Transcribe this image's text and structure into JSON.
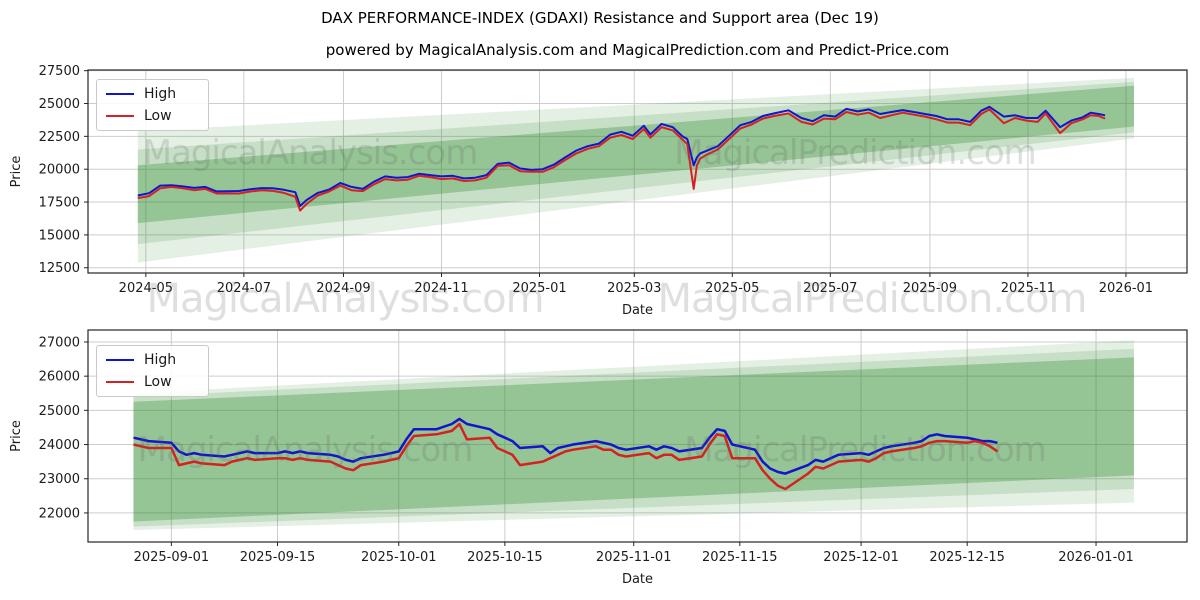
{
  "figure": {
    "title": "DAX PERFORMANCE-INDEX (GDAXI) Resistance and Support area (Dec 19)",
    "subtitle": "powered by MagicalAnalysis.com and MagicalPrediction.com and Predict-Price.com"
  },
  "watermarks": {
    "analysis": "MagicalAnalysis.com",
    "prediction": "MagicalPrediction.com"
  },
  "colors": {
    "high_line": "#1414cc",
    "low_line": "#d62121",
    "band_green": "#2e8b2e",
    "grid": "#cdcdcd",
    "spine": "#262626"
  },
  "chart_data": [
    {
      "id": "overview",
      "type": "line",
      "xlabel": "Date",
      "ylabel": "Price",
      "x_domain": [
        "2024-03-26",
        "2026-02-08"
      ],
      "y_domain": [
        12100,
        27550
      ],
      "x_ticks": [
        {
          "d": "2024-05-01",
          "label": "2024-05"
        },
        {
          "d": "2024-07-01",
          "label": "2024-07"
        },
        {
          "d": "2024-09-01",
          "label": "2024-09"
        },
        {
          "d": "2024-11-01",
          "label": "2024-11"
        },
        {
          "d": "2025-01-01",
          "label": "2025-01"
        },
        {
          "d": "2025-03-01",
          "label": "2025-03"
        },
        {
          "d": "2025-05-01",
          "label": "2025-05"
        },
        {
          "d": "2025-07-01",
          "label": "2025-07"
        },
        {
          "d": "2025-09-01",
          "label": "2025-09"
        },
        {
          "d": "2025-11-01",
          "label": "2025-11"
        },
        {
          "d": "2026-01-01",
          "label": "2026-01"
        }
      ],
      "y_ticks": [
        12500,
        15000,
        17500,
        20000,
        22500,
        25000,
        27500
      ],
      "band_color": "#2e8b2e",
      "bands": [
        {
          "x": [
            "2024-04-26",
            "2026-01-06"
          ],
          "top": [
            22900,
            26950
          ],
          "bottom": [
            12900,
            22350
          ],
          "opacity": 0.13
        },
        {
          "x": [
            "2024-04-26",
            "2026-01-06"
          ],
          "top": [
            21500,
            26650
          ],
          "bottom": [
            14300,
            22800
          ],
          "opacity": 0.16
        },
        {
          "x": [
            "2024-04-26",
            "2026-01-06"
          ],
          "top": [
            20300,
            26350
          ],
          "bottom": [
            15900,
            23250
          ],
          "opacity": 0.32
        }
      ],
      "series": [
        {
          "label": "High",
          "col": 1,
          "color": "#1414cc"
        },
        {
          "label": "Low",
          "col": 2,
          "color": "#d62121"
        }
      ],
      "columns": [
        "date",
        "high",
        "low"
      ],
      "rows": [
        [
          "2024-04-26",
          18000,
          17800
        ],
        [
          "2024-05-03",
          18175,
          17950
        ],
        [
          "2024-05-10",
          18750,
          18550
        ],
        [
          "2024-05-17",
          18780,
          18650
        ],
        [
          "2024-05-24",
          18690,
          18550
        ],
        [
          "2024-05-31",
          18580,
          18400
        ],
        [
          "2024-06-07",
          18650,
          18500
        ],
        [
          "2024-06-14",
          18310,
          18150
        ],
        [
          "2024-06-21",
          18320,
          18150
        ],
        [
          "2024-06-28",
          18340,
          18150
        ],
        [
          "2024-07-05",
          18480,
          18300
        ],
        [
          "2024-07-12",
          18560,
          18400
        ],
        [
          "2024-07-19",
          18550,
          18350
        ],
        [
          "2024-07-26",
          18430,
          18200
        ],
        [
          "2024-08-02",
          18250,
          17900
        ],
        [
          "2024-08-05",
          17200,
          16850
        ],
        [
          "2024-08-09",
          17650,
          17350
        ],
        [
          "2024-08-16",
          18200,
          18000
        ],
        [
          "2024-08-23",
          18450,
          18300
        ],
        [
          "2024-08-30",
          18950,
          18750
        ],
        [
          "2024-09-06",
          18650,
          18400
        ],
        [
          "2024-09-13",
          18500,
          18330
        ],
        [
          "2024-09-20",
          19050,
          18850
        ],
        [
          "2024-09-27",
          19450,
          19250
        ],
        [
          "2024-10-04",
          19350,
          19150
        ],
        [
          "2024-10-11",
          19400,
          19200
        ],
        [
          "2024-10-18",
          19650,
          19500
        ],
        [
          "2024-10-25",
          19550,
          19400
        ],
        [
          "2024-11-01",
          19450,
          19250
        ],
        [
          "2024-11-08",
          19500,
          19300
        ],
        [
          "2024-11-15",
          19300,
          19100
        ],
        [
          "2024-11-22",
          19350,
          19150
        ],
        [
          "2024-11-29",
          19550,
          19350
        ],
        [
          "2024-12-06",
          20400,
          20250
        ],
        [
          "2024-12-13",
          20500,
          20300
        ],
        [
          "2024-12-20",
          20050,
          19850
        ],
        [
          "2024-12-27",
          19950,
          19800
        ],
        [
          "2025-01-03",
          20000,
          19800
        ],
        [
          "2025-01-10",
          20350,
          20150
        ],
        [
          "2025-01-17",
          20900,
          20700
        ],
        [
          "2025-01-24",
          21420,
          21200
        ],
        [
          "2025-01-31",
          21750,
          21550
        ],
        [
          "2025-02-07",
          21950,
          21750
        ],
        [
          "2025-02-14",
          22630,
          22400
        ],
        [
          "2025-02-21",
          22850,
          22600
        ],
        [
          "2025-02-28",
          22550,
          22300
        ],
        [
          "2025-03-07",
          23300,
          23050
        ],
        [
          "2025-03-11",
          22650,
          22400
        ],
        [
          "2025-03-18",
          23450,
          23200
        ],
        [
          "2025-03-25",
          23200,
          22950
        ],
        [
          "2025-03-31",
          22500,
          22250
        ],
        [
          "2025-04-03",
          22300,
          21900
        ],
        [
          "2025-04-07",
          20300,
          18500
        ],
        [
          "2025-04-09",
          20900,
          20300
        ],
        [
          "2025-04-11",
          21200,
          20800
        ],
        [
          "2025-04-15",
          21400,
          21100
        ],
        [
          "2025-04-22",
          21750,
          21500
        ],
        [
          "2025-04-29",
          22550,
          22300
        ],
        [
          "2025-05-06",
          23350,
          23100
        ],
        [
          "2025-05-13",
          23600,
          23400
        ],
        [
          "2025-05-20",
          24050,
          23850
        ],
        [
          "2025-05-27",
          24250,
          24050
        ],
        [
          "2025-06-05",
          24480,
          24250
        ],
        [
          "2025-06-13",
          23900,
          23600
        ],
        [
          "2025-06-20",
          23650,
          23400
        ],
        [
          "2025-06-27",
          24100,
          23850
        ],
        [
          "2025-07-04",
          24000,
          23800
        ],
        [
          "2025-07-11",
          24600,
          24350
        ],
        [
          "2025-07-18",
          24400,
          24150
        ],
        [
          "2025-07-25",
          24550,
          24300
        ],
        [
          "2025-08-01",
          24200,
          23900
        ],
        [
          "2025-08-08",
          24350,
          24100
        ],
        [
          "2025-08-15",
          24500,
          24300
        ],
        [
          "2025-08-22",
          24350,
          24150
        ],
        [
          "2025-08-29",
          24200,
          24000
        ],
        [
          "2025-09-05",
          24050,
          23800
        ],
        [
          "2025-09-12",
          23800,
          23550
        ],
        [
          "2025-09-19",
          23800,
          23550
        ],
        [
          "2025-09-26",
          23600,
          23350
        ],
        [
          "2025-10-03",
          24450,
          24200
        ],
        [
          "2025-10-08",
          24750,
          24550
        ],
        [
          "2025-10-17",
          24000,
          23500
        ],
        [
          "2025-10-24",
          24100,
          23900
        ],
        [
          "2025-10-31",
          23900,
          23700
        ],
        [
          "2025-11-07",
          23900,
          23600
        ],
        [
          "2025-11-12",
          24450,
          24250
        ],
        [
          "2025-11-21",
          23200,
          22750
        ],
        [
          "2025-11-28",
          23700,
          23500
        ],
        [
          "2025-12-05",
          23950,
          23800
        ],
        [
          "2025-12-10",
          24300,
          24100
        ],
        [
          "2025-12-15",
          24200,
          24050
        ],
        [
          "2025-12-19",
          24100,
          23850
        ]
      ]
    },
    {
      "id": "zoom",
      "type": "line",
      "xlabel": "Date",
      "ylabel": "Price",
      "x_domain": [
        "2025-08-21",
        "2026-01-13"
      ],
      "y_domain": [
        21150,
        27350
      ],
      "x_ticks": [
        {
          "d": "2025-09-01",
          "label": "2025-09-01"
        },
        {
          "d": "2025-09-15",
          "label": "2025-09-15"
        },
        {
          "d": "2025-10-01",
          "label": "2025-10-01"
        },
        {
          "d": "2025-10-15",
          "label": "2025-10-15"
        },
        {
          "d": "2025-11-01",
          "label": "2025-11-01"
        },
        {
          "d": "2025-11-15",
          "label": "2025-11-15"
        },
        {
          "d": "2025-12-01",
          "label": "2025-12-01"
        },
        {
          "d": "2025-12-15",
          "label": "2025-12-15"
        },
        {
          "d": "2026-01-01",
          "label": "2026-01-01"
        }
      ],
      "y_ticks": [
        22000,
        23000,
        24000,
        25000,
        26000,
        27000
      ],
      "band_color": "#2e8b2e",
      "bands": [
        {
          "x": [
            "2025-08-27",
            "2026-01-06"
          ],
          "top": [
            25500,
            27050
          ],
          "bottom": [
            21500,
            22300
          ],
          "opacity": 0.13
        },
        {
          "x": [
            "2025-08-27",
            "2026-01-06"
          ],
          "top": [
            25400,
            26800
          ],
          "bottom": [
            21600,
            22700
          ],
          "opacity": 0.16
        },
        {
          "x": [
            "2025-08-27",
            "2026-01-06"
          ],
          "top": [
            25250,
            26550
          ],
          "bottom": [
            21750,
            23100
          ],
          "opacity": 0.32
        }
      ],
      "series": [
        {
          "label": "High",
          "col": 1,
          "color": "#1414cc"
        },
        {
          "label": "Low",
          "col": 2,
          "color": "#d62121"
        }
      ],
      "columns": [
        "date",
        "high",
        "low"
      ],
      "rows": [
        [
          "2025-08-27",
          24200,
          24000
        ],
        [
          "2025-08-28",
          24150,
          23950
        ],
        [
          "2025-08-29",
          24100,
          23900
        ],
        [
          "2025-09-01",
          24050,
          23900
        ],
        [
          "2025-09-02",
          23800,
          23400
        ],
        [
          "2025-09-03",
          23700,
          23450
        ],
        [
          "2025-09-04",
          23750,
          23500
        ],
        [
          "2025-09-05",
          23700,
          23450
        ],
        [
          "2025-09-08",
          23650,
          23400
        ],
        [
          "2025-09-09",
          23700,
          23500
        ],
        [
          "2025-09-10",
          23750,
          23550
        ],
        [
          "2025-09-11",
          23800,
          23600
        ],
        [
          "2025-09-12",
          23750,
          23550
        ],
        [
          "2025-09-15",
          23750,
          23600
        ],
        [
          "2025-09-16",
          23800,
          23600
        ],
        [
          "2025-09-17",
          23750,
          23550
        ],
        [
          "2025-09-18",
          23800,
          23600
        ],
        [
          "2025-09-19",
          23750,
          23550
        ],
        [
          "2025-09-22",
          23700,
          23500
        ],
        [
          "2025-09-23",
          23650,
          23400
        ],
        [
          "2025-09-24",
          23550,
          23300
        ],
        [
          "2025-09-25",
          23500,
          23250
        ],
        [
          "2025-09-26",
          23600,
          23400
        ],
        [
          "2025-09-29",
          23700,
          23500
        ],
        [
          "2025-09-30",
          23750,
          23550
        ],
        [
          "2025-10-01",
          23800,
          23600
        ],
        [
          "2025-10-02",
          24150,
          23950
        ],
        [
          "2025-10-03",
          24450,
          24250
        ],
        [
          "2025-10-06",
          24450,
          24300
        ],
        [
          "2025-10-08",
          24600,
          24400
        ],
        [
          "2025-10-09",
          24750,
          24600
        ],
        [
          "2025-10-10",
          24600,
          24150
        ],
        [
          "2025-10-13",
          24450,
          24200
        ],
        [
          "2025-10-14",
          24300,
          23900
        ],
        [
          "2025-10-15",
          24200,
          23800
        ],
        [
          "2025-10-16",
          24100,
          23700
        ],
        [
          "2025-10-17",
          23900,
          23400
        ],
        [
          "2025-10-20",
          23950,
          23500
        ],
        [
          "2025-10-21",
          23750,
          23600
        ],
        [
          "2025-10-22",
          23900,
          23700
        ],
        [
          "2025-10-23",
          23950,
          23800
        ],
        [
          "2025-10-24",
          24000,
          23850
        ],
        [
          "2025-10-27",
          24100,
          23950
        ],
        [
          "2025-10-28",
          24050,
          23850
        ],
        [
          "2025-10-29",
          24000,
          23850
        ],
        [
          "2025-10-30",
          23900,
          23700
        ],
        [
          "2025-10-31",
          23850,
          23650
        ],
        [
          "2025-11-03",
          23950,
          23750
        ],
        [
          "2025-11-04",
          23850,
          23600
        ],
        [
          "2025-11-05",
          23950,
          23700
        ],
        [
          "2025-11-06",
          23900,
          23700
        ],
        [
          "2025-11-07",
          23800,
          23550
        ],
        [
          "2025-11-10",
          23900,
          23650
        ],
        [
          "2025-11-11",
          24200,
          24000
        ],
        [
          "2025-11-12",
          24450,
          24300
        ],
        [
          "2025-11-13",
          24400,
          24250
        ],
        [
          "2025-11-14",
          24000,
          23600
        ],
        [
          "2025-11-17",
          23850,
          23600
        ],
        [
          "2025-11-18",
          23500,
          23250
        ],
        [
          "2025-11-19",
          23300,
          23000
        ],
        [
          "2025-11-20",
          23200,
          22800
        ],
        [
          "2025-11-21",
          23150,
          22700
        ],
        [
          "2025-11-24",
          23400,
          23150
        ],
        [
          "2025-11-25",
          23550,
          23350
        ],
        [
          "2025-11-26",
          23500,
          23300
        ],
        [
          "2025-11-27",
          23600,
          23400
        ],
        [
          "2025-11-28",
          23700,
          23500
        ],
        [
          "2025-12-01",
          23750,
          23550
        ],
        [
          "2025-12-02",
          23700,
          23500
        ],
        [
          "2025-12-03",
          23800,
          23600
        ],
        [
          "2025-12-04",
          23900,
          23750
        ],
        [
          "2025-12-05",
          23950,
          23800
        ],
        [
          "2025-12-08",
          24050,
          23900
        ],
        [
          "2025-12-09",
          24100,
          23950
        ],
        [
          "2025-12-10",
          24250,
          24050
        ],
        [
          "2025-12-11",
          24300,
          24100
        ],
        [
          "2025-12-12",
          24250,
          24100
        ],
        [
          "2025-12-15",
          24200,
          24050
        ],
        [
          "2025-12-16",
          24150,
          24100
        ],
        [
          "2025-12-17",
          24100,
          24050
        ],
        [
          "2025-12-18",
          24100,
          23950
        ],
        [
          "2025-12-19",
          24050,
          23800
        ]
      ]
    }
  ]
}
